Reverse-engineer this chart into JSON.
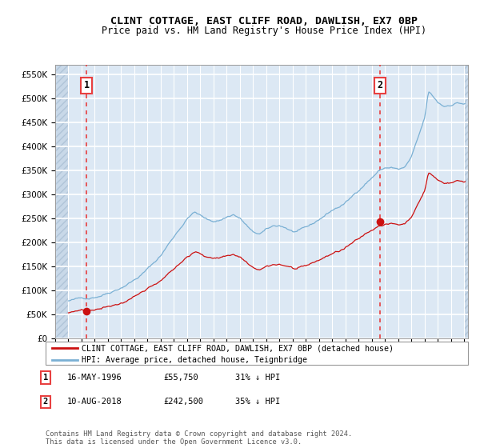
{
  "title": "CLINT COTTAGE, EAST CLIFF ROAD, DAWLISH, EX7 0BP",
  "subtitle": "Price paid vs. HM Land Registry's House Price Index (HPI)",
  "legend_line1": "CLINT COTTAGE, EAST CLIFF ROAD, DAWLISH, EX7 0BP (detached house)",
  "legend_line2": "HPI: Average price, detached house, Teignbridge",
  "annotation1_label": "1",
  "annotation1_date": "16-MAY-1996",
  "annotation1_price": "£55,750",
  "annotation1_hpi": "31% ↓ HPI",
  "annotation2_label": "2",
  "annotation2_date": "10-AUG-2018",
  "annotation2_price": "£242,500",
  "annotation2_hpi": "35% ↓ HPI",
  "footer": "Contains HM Land Registry data © Crown copyright and database right 2024.\nThis data is licensed under the Open Government Licence v3.0.",
  "ylim": [
    0,
    570000
  ],
  "yticks": [
    0,
    50000,
    100000,
    150000,
    200000,
    250000,
    300000,
    350000,
    400000,
    450000,
    500000,
    550000
  ],
  "xlim_start": 1994.0,
  "xlim_end": 2025.3,
  "sale1_x": 1996.37,
  "sale1_y": 55750,
  "sale2_x": 2018.61,
  "sale2_y": 242500,
  "hpi_color": "#7ab0d4",
  "price_color": "#cc1111",
  "vline_color": "#e84040",
  "background_color": "#dce8f4",
  "grid_color": "#ffffff"
}
